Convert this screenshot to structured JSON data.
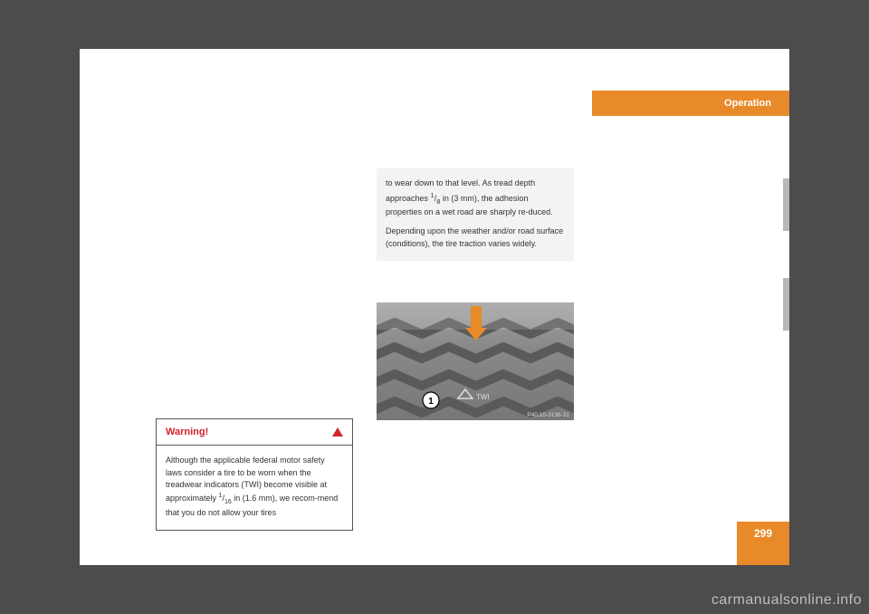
{
  "header": {
    "section": "Operation"
  },
  "page_number": "299",
  "watermark": "carmanualsonline.info",
  "warning": {
    "title": "Warning!",
    "body_html": "Although the applicable federal motor safety laws consider a tire to be worn when the treadwear indicators (TWI) become visible at approximately <sup>1</sup>/<sub>16</sub> in (1.6 mm), we recom-mend that you do not allow your tires"
  },
  "continuation": {
    "p1_html": "to wear down to that level. As tread depth approaches <sup>1</sup>/<sub>8</sub> in (3 mm), the adhesion properties on a wet road are sharply re-duced.",
    "p2": "Depending upon the weather and/or road surface (conditions), the tire traction varies widely."
  },
  "figure": {
    "caption_code": "P40.10-3136-31",
    "callout_number": "1",
    "twi_label": "TWI",
    "colors": {
      "tire_light": "#9e9e9e",
      "tire_dark": "#6e6e6e",
      "arrow": "#e88a2a",
      "callout_circle_fill": "#ffffff",
      "callout_circle_stroke": "#000000"
    }
  },
  "colors": {
    "page_bg": "#ffffff",
    "body_bg": "#4c4c4c",
    "accent": "#e88a2a",
    "warning_red": "#d2232a",
    "tab_gray": "#b8b8b8",
    "cont_bg": "#f3f3f3"
  }
}
